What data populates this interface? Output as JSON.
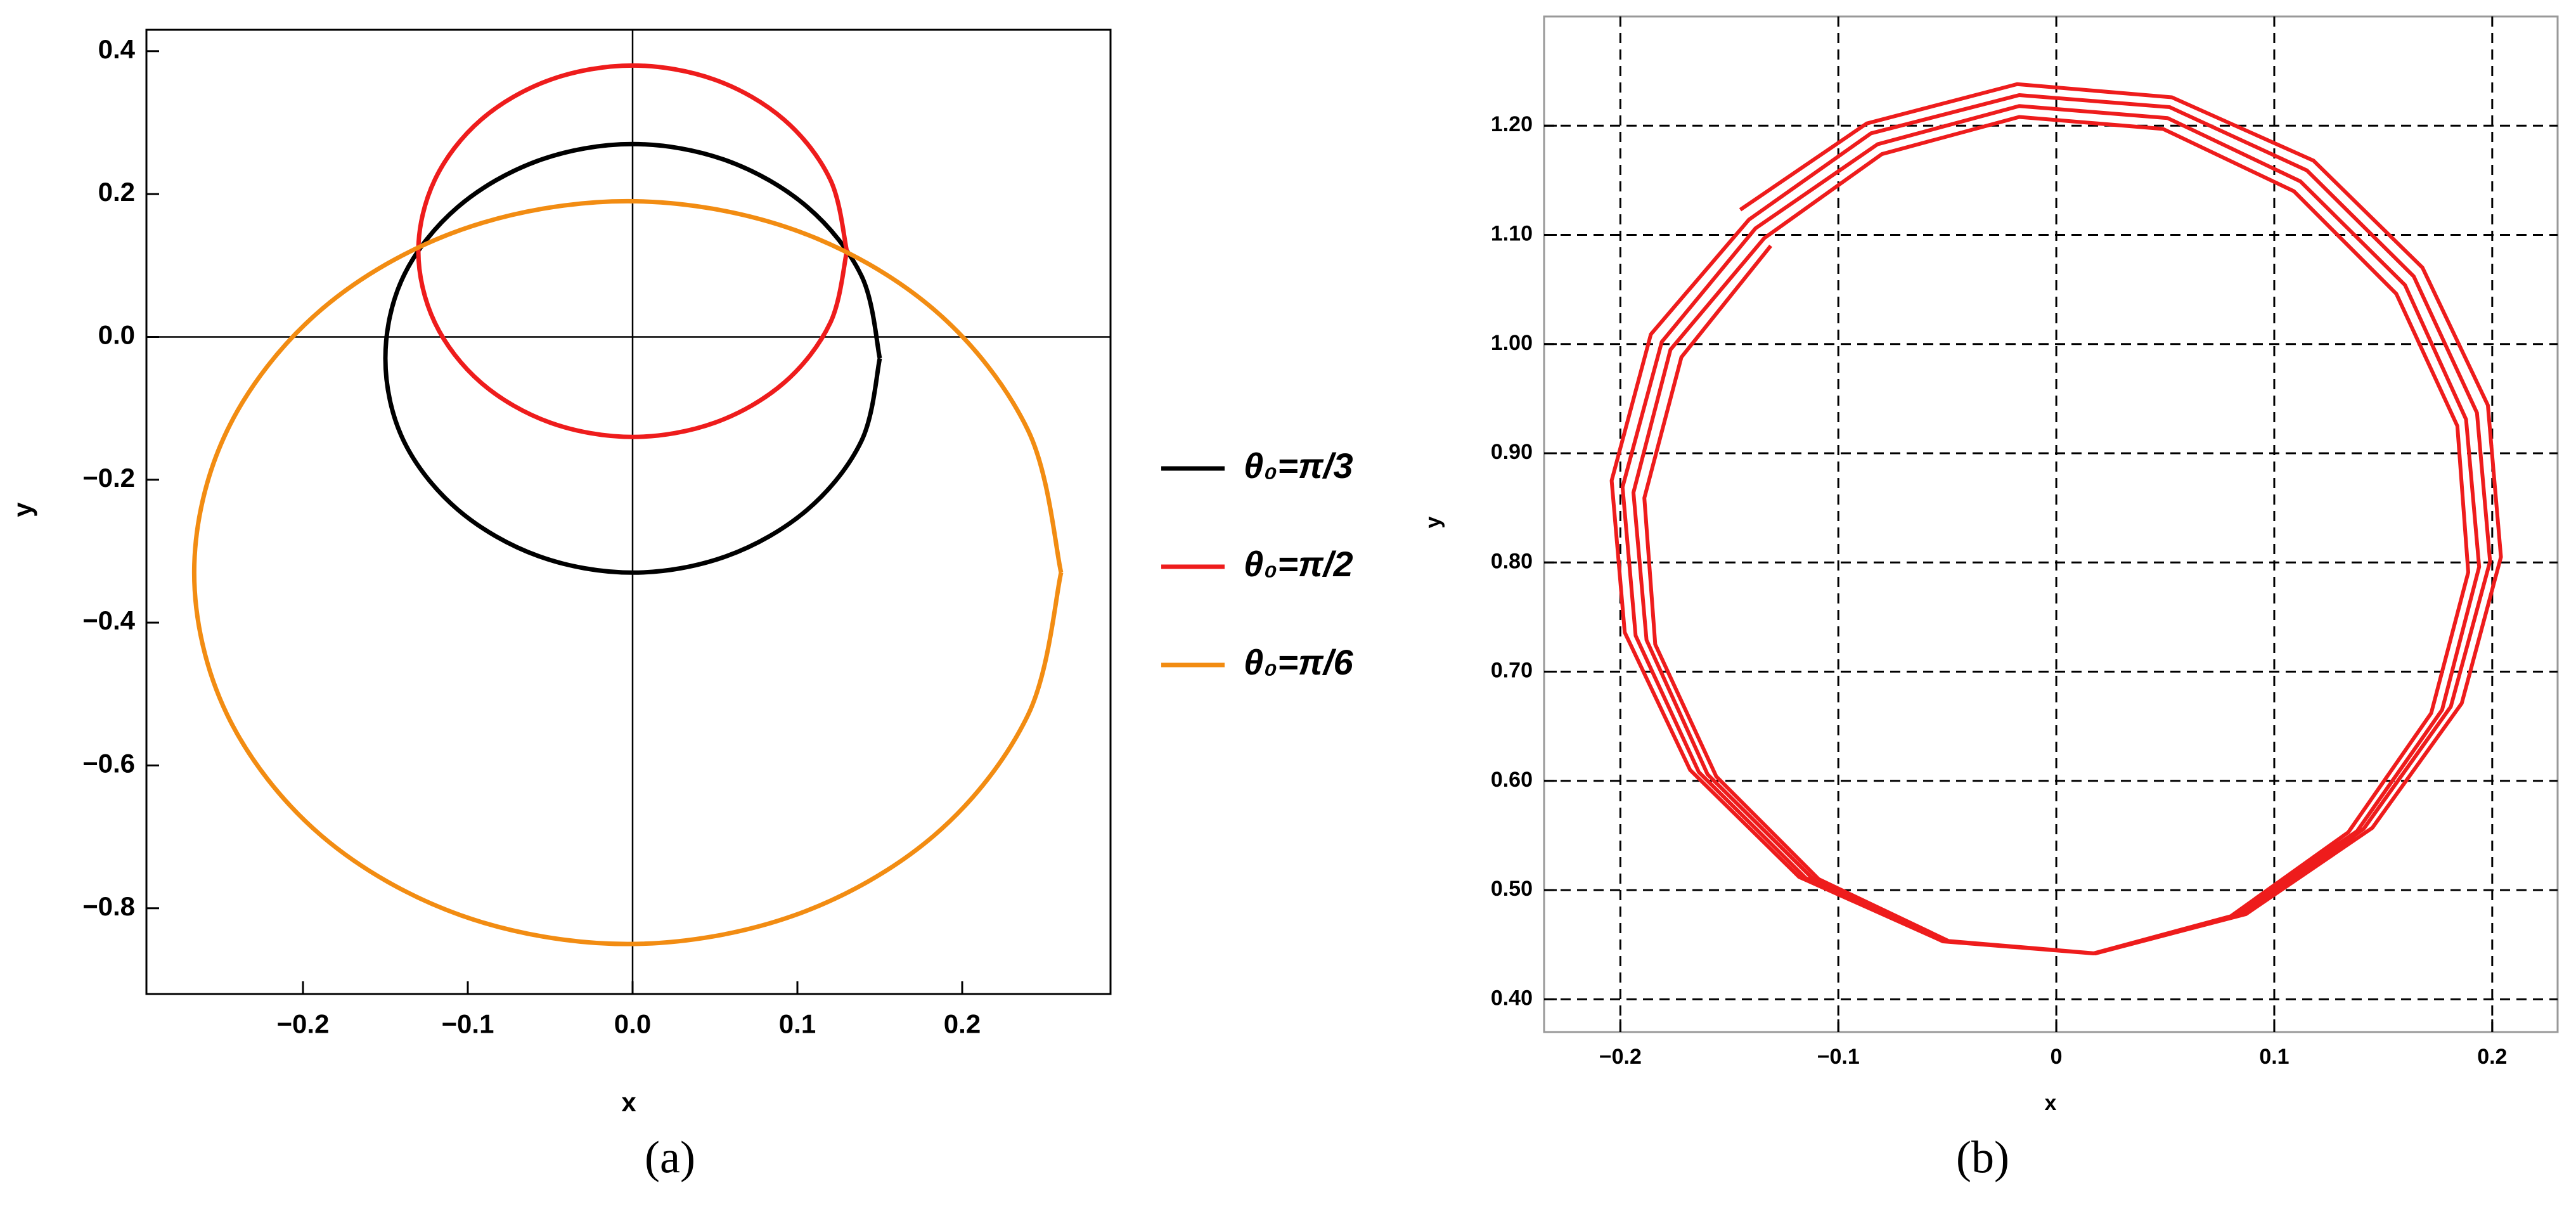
{
  "chart_data": [
    {
      "type": "line",
      "x_label": "x",
      "y_label": "y",
      "caption": "(a)",
      "smooth": true,
      "zero_axes": true,
      "grid": false,
      "legend": "right",
      "xlim": [
        -0.295,
        0.29
      ],
      "ylim": [
        -0.92,
        0.43
      ],
      "xticks": [
        {
          "value": -0.2,
          "label": "−0.2"
        },
        {
          "value": -0.1,
          "label": "−0.1"
        },
        {
          "value": 0,
          "label": "0.0"
        },
        0.1,
        0.2
      ],
      "yticks": [
        {
          "value": -0.8,
          "label": "−0.8"
        },
        {
          "value": -0.6,
          "label": "−0.6"
        },
        {
          "value": -0.4,
          "label": "−0.4"
        },
        {
          "value": -0.2,
          "label": "−0.2"
        },
        {
          "value": 0,
          "label": "0.0"
        },
        0.2,
        0.4
      ],
      "series": [
        {
          "name": "θ₀=π/3",
          "color": "#000000",
          "x": [
            0.15,
            0.139,
            0.106,
            0.057,
            0,
            -0.057,
            -0.106,
            -0.139,
            -0.15,
            -0.139,
            -0.106,
            -0.057,
            0,
            0.057,
            0.106,
            0.139,
            0.15
          ],
          "values": [
            -0.03,
            0.085,
            0.182,
            0.247,
            0.27,
            0.247,
            0.182,
            0.085,
            -0.03,
            -0.145,
            -0.242,
            -0.307,
            -0.33,
            -0.307,
            -0.242,
            -0.145,
            -0.03
          ]
        },
        {
          "name": "θ₀=π/2",
          "color": "#ee1c1c",
          "x": [
            0.13,
            0.12,
            0.092,
            0.05,
            0,
            -0.05,
            -0.092,
            -0.12,
            -0.13,
            -0.12,
            -0.092,
            -0.05,
            0,
            0.05,
            0.092,
            0.12,
            0.13
          ],
          "values": [
            0.12,
            0.22,
            0.304,
            0.36,
            0.38,
            0.36,
            0.304,
            0.22,
            0.12,
            0.02,
            -0.064,
            -0.12,
            -0.14,
            -0.12,
            -0.064,
            0.02,
            0.12
          ]
        },
        {
          "name": "θ₀=π/6",
          "color": "#f28c12",
          "x": [
            0.26,
            0.24,
            0.183,
            0.098,
            -0.003,
            -0.104,
            -0.189,
            -0.246,
            -0.266,
            -0.246,
            -0.189,
            -0.104,
            -0.003,
            0.098,
            0.183,
            0.24,
            0.26
          ],
          "values": [
            -0.33,
            -0.131,
            0.038,
            0.15,
            0.19,
            0.15,
            0.038,
            -0.131,
            -0.33,
            -0.529,
            -0.698,
            -0.81,
            -0.85,
            -0.81,
            -0.698,
            -0.529,
            -0.33
          ]
        }
      ]
    },
    {
      "type": "line",
      "x_label": "x",
      "y_label": "y",
      "caption": "(b)",
      "smooth": false,
      "zero_axes": false,
      "grid": true,
      "xlim": [
        -0.235,
        0.23
      ],
      "ylim": [
        0.37,
        1.3
      ],
      "xticks": [
        {
          "value": -0.2,
          "label": "−0.2"
        },
        {
          "value": -0.1,
          "label": "−0.1"
        },
        0,
        0.1,
        0.2
      ],
      "yticks": [
        {
          "value": 0.4,
          "label": "0.40"
        },
        {
          "value": 0.5,
          "label": "0.50"
        },
        {
          "value": 0.6,
          "label": "0.60"
        },
        {
          "value": 0.7,
          "label": "0.70"
        },
        {
          "value": 0.8,
          "label": "0.80"
        },
        {
          "value": 0.9,
          "label": "0.90"
        },
        {
          "value": 1.0,
          "label": "1.00"
        },
        {
          "value": 1.1,
          "label": "1.10"
        },
        {
          "value": 1.2,
          "label": "1.20"
        }
      ],
      "series": [
        {
          "color": "#ee1c1c",
          "x": [
            -0.145,
            -0.087,
            -0.018,
            0.053,
            0.118,
            0.168,
            0.198,
            0.204,
            0.186,
            0.145,
            0.087,
            0.018,
            -0.053,
            -0.118,
            -0.168,
            -0.198,
            -0.204,
            -0.186,
            -0.141,
            -0.085,
            -0.017,
            0.052,
            0.115,
            0.164,
            0.193,
            0.199,
            0.181,
            0.141,
            0.085,
            0.017,
            -0.052,
            -0.115,
            -0.164,
            -0.193,
            -0.199,
            -0.181,
            -0.138,
            -0.082,
            -0.017,
            0.051,
            0.112,
            0.16,
            0.188,
            0.194,
            0.177,
            0.138,
            0.082,
            0.017,
            -0.051,
            -0.112,
            -0.16,
            -0.188,
            -0.194,
            -0.177,
            -0.134,
            -0.08,
            -0.017,
            0.049,
            0.109,
            0.156,
            0.184,
            0.189,
            0.172,
            0.134,
            0.08,
            0.017,
            -0.049,
            -0.109,
            -0.156,
            -0.184,
            -0.189,
            -0.172,
            -0.131
          ],
          "values": [
            1.123,
            1.202,
            1.238,
            1.226,
            1.168,
            1.07,
            0.944,
            0.805,
            0.671,
            0.557,
            0.478,
            0.442,
            0.454,
            0.512,
            0.61,
            0.736,
            0.875,
            1.009,
            1.114,
            1.193,
            1.228,
            1.217,
            1.159,
            1.062,
            0.937,
            0.801,
            0.668,
            0.556,
            0.477,
            0.442,
            0.453,
            0.511,
            0.608,
            0.733,
            0.869,
            1.002,
            1.106,
            1.183,
            1.218,
            1.207,
            1.149,
            1.054,
            0.931,
            0.796,
            0.665,
            0.554,
            0.477,
            0.442,
            0.453,
            0.511,
            0.606,
            0.729,
            0.864,
            0.995,
            1.097,
            1.174,
            1.208,
            1.197,
            1.14,
            1.046,
            0.925,
            0.791,
            0.662,
            0.553,
            0.476,
            0.442,
            0.453,
            0.51,
            0.604,
            0.725,
            0.859,
            0.988,
            1.09
          ]
        }
      ]
    }
  ]
}
